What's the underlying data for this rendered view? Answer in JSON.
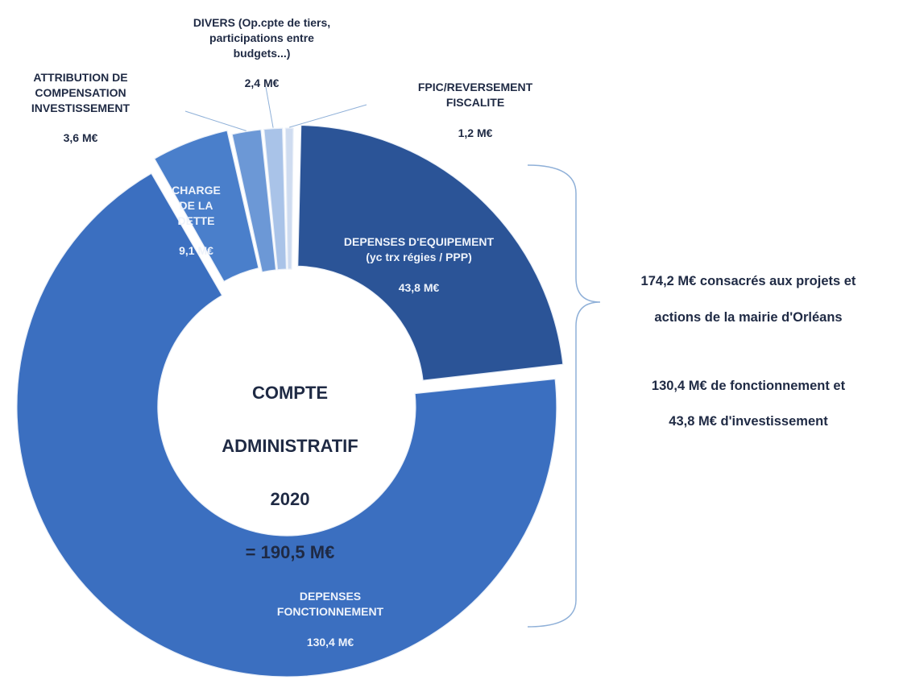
{
  "chart_data": {
    "type": "pie",
    "donut": true,
    "slices": [
      {
        "label": "DEPENSES D'EQUIPEMENT\n(yc trx régies / PPP)",
        "value_label": "43,8 M€",
        "value": 43.8,
        "color": "#2b5497",
        "exploded": true
      },
      {
        "label": "DEPENSES\nFONCTIONNEMENT",
        "value_label": "130,4 M€",
        "value": 130.4,
        "color": "#3b6fc0",
        "exploded": true
      },
      {
        "label": "CHARGE\nDE LA\nDETTE",
        "value_label": "9,1 M€",
        "value": 9.1,
        "color": "#4a7fcb",
        "exploded": true
      },
      {
        "label": "ATTRIBUTION DE\nCOMPENSATION\nINVESTISSEMENT",
        "value_label": "3,6 M€",
        "value": 3.6,
        "color": "#6c98d6",
        "exploded": false
      },
      {
        "label": "DIVERS (Op.cpte de tiers,\nparticipations entre\nbudgets...)",
        "value_label": "2,4 M€",
        "value": 2.4,
        "color": "#a9c3e8",
        "exploded": false
      },
      {
        "label": "FPIC/REVERSEMENT\nFISCALITE",
        "value_label": "1,2 M€",
        "value": 1.2,
        "color": "#cfdcf0",
        "exploded": false
      }
    ],
    "center_text": [
      "COMPTE",
      "ADMINISTRATIF",
      "2020",
      "= 190,5 M€"
    ]
  },
  "annotation": {
    "line1": "174,2 M€ consacrés aux projets et",
    "line2": "actions de la mairie d'Orléans",
    "line3": "130,4 M€ de fonctionnement et",
    "line4": "43,8 M€ d'investissement"
  },
  "colors": {
    "text": "#1f2a44",
    "bracket": "#8fb0d8"
  }
}
